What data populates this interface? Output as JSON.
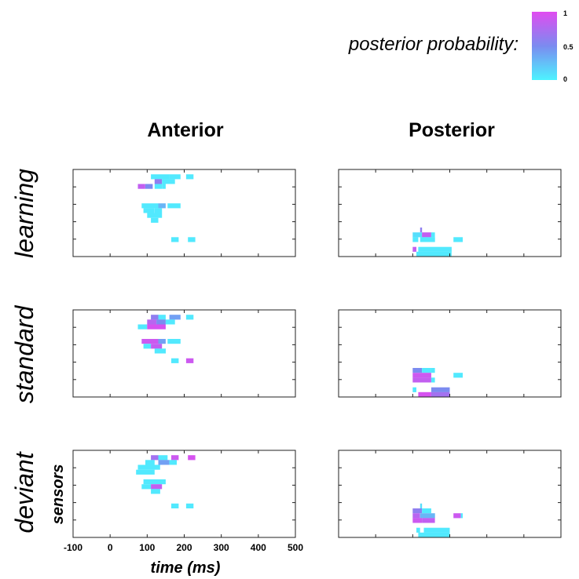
{
  "chart_data": {
    "type": "heatmap",
    "colorbar": {
      "label": "posterior probability:",
      "ticks": [
        "1",
        "0.5",
        "0"
      ],
      "range": [
        0,
        1
      ],
      "colors": {
        "low": "#4df3ff",
        "mid": "#7b8bf0",
        "high": "#e04cf0"
      }
    },
    "columns": [
      "Anterior",
      "Posterior"
    ],
    "rows": [
      "learning",
      "standard",
      "deviant"
    ],
    "xlabel": "time (ms)",
    "ylabel": "sensors",
    "xticks": [
      "-100",
      "0",
      "100",
      "200",
      "300",
      "400",
      "500"
    ],
    "xlim": [
      -100,
      500
    ],
    "panels": [
      {
        "row": "learning",
        "col": "Anterior",
        "cells": [
          [
            110,
            160,
            1,
            0.05
          ],
          [
            120,
            140,
            2,
            0.6
          ],
          [
            160,
            190,
            1,
            0.05
          ],
          [
            205,
            225,
            1,
            0.05
          ],
          [
            120,
            140,
            3,
            0.05
          ],
          [
            140,
            175,
            2,
            0.05
          ],
          [
            75,
            95,
            3,
            0.85
          ],
          [
            95,
            115,
            3,
            0.5
          ],
          [
            140,
            150,
            3,
            0.05
          ],
          [
            85,
            130,
            7,
            0.05
          ],
          [
            130,
            150,
            7,
            0.3
          ],
          [
            155,
            190,
            7,
            0.05
          ],
          [
            90,
            120,
            8,
            0.05
          ],
          [
            120,
            140,
            8,
            0.05
          ],
          [
            100,
            140,
            9,
            0.05
          ],
          [
            110,
            130,
            10,
            0.05
          ],
          [
            165,
            185,
            14,
            0.05
          ],
          [
            210,
            230,
            14,
            0.05
          ]
        ]
      },
      {
        "row": "learning",
        "col": "Posterior",
        "cells": [
          [
            120,
            125,
            12,
            0.6
          ],
          [
            100,
            125,
            13,
            0.1
          ],
          [
            125,
            150,
            13,
            0.85
          ],
          [
            150,
            160,
            13,
            0.05
          ],
          [
            100,
            115,
            14,
            0.05
          ],
          [
            120,
            160,
            14,
            0.05
          ],
          [
            210,
            235,
            14,
            0.05
          ],
          [
            100,
            110,
            16,
            0.85
          ],
          [
            115,
            205,
            16,
            0.05
          ],
          [
            110,
            205,
            17,
            0.05
          ]
        ]
      },
      {
        "row": "standard",
        "col": "Anterior",
        "cells": [
          [
            110,
            130,
            1,
            0.6
          ],
          [
            130,
            150,
            1,
            0.05
          ],
          [
            160,
            190,
            1,
            0.4
          ],
          [
            205,
            225,
            1,
            0.05
          ],
          [
            100,
            125,
            2,
            0.8
          ],
          [
            125,
            150,
            2,
            0.5
          ],
          [
            150,
            175,
            2,
            0.05
          ],
          [
            75,
            100,
            3,
            0.05
          ],
          [
            100,
            150,
            3,
            0.95
          ],
          [
            85,
            130,
            6,
            0.9
          ],
          [
            130,
            150,
            6,
            0.4
          ],
          [
            155,
            190,
            6,
            0.05
          ],
          [
            90,
            110,
            7,
            0.05
          ],
          [
            110,
            140,
            7,
            0.85
          ],
          [
            120,
            150,
            8,
            0.05
          ],
          [
            165,
            185,
            10,
            0.05
          ],
          [
            205,
            225,
            10,
            0.9
          ]
        ]
      },
      {
        "row": "standard",
        "col": "Posterior",
        "cells": [
          [
            100,
            125,
            12,
            0.5
          ],
          [
            125,
            150,
            12,
            0.05
          ],
          [
            150,
            160,
            12,
            0.05
          ],
          [
            100,
            150,
            13,
            0.9
          ],
          [
            210,
            235,
            13,
            0.05
          ],
          [
            100,
            150,
            14,
            0.85
          ],
          [
            150,
            160,
            14,
            0.05
          ],
          [
            100,
            110,
            16,
            0.05
          ],
          [
            150,
            200,
            16,
            0.5
          ],
          [
            115,
            150,
            17,
            0.95
          ],
          [
            150,
            200,
            17,
            0.7
          ]
        ]
      },
      {
        "row": "deviant",
        "col": "Anterior",
        "cells": [
          [
            110,
            130,
            1,
            0.7
          ],
          [
            130,
            155,
            1,
            0.05
          ],
          [
            165,
            185,
            1,
            0.9
          ],
          [
            210,
            230,
            1,
            0.95
          ],
          [
            95,
            120,
            2,
            0.05
          ],
          [
            130,
            160,
            2,
            0.4
          ],
          [
            160,
            180,
            2,
            0.05
          ],
          [
            75,
            135,
            3,
            0.05
          ],
          [
            70,
            120,
            4,
            0.05
          ],
          [
            90,
            150,
            6,
            0.05
          ],
          [
            85,
            110,
            7,
            0.05
          ],
          [
            110,
            140,
            7,
            0.85
          ],
          [
            110,
            135,
            8,
            0.05
          ],
          [
            165,
            185,
            11,
            0.05
          ],
          [
            205,
            225,
            11,
            0.05
          ]
        ]
      },
      {
        "row": "deviant",
        "col": "Posterior",
        "cells": [
          [
            120,
            125,
            11,
            0.1
          ],
          [
            100,
            125,
            12,
            0.6
          ],
          [
            125,
            150,
            12,
            0.05
          ],
          [
            100,
            120,
            13,
            0.8
          ],
          [
            120,
            160,
            13,
            0.3
          ],
          [
            210,
            230,
            13,
            0.9
          ],
          [
            230,
            235,
            13,
            0.05
          ],
          [
            100,
            125,
            14,
            0.9
          ],
          [
            125,
            160,
            14,
            0.85
          ],
          [
            110,
            120,
            16,
            0.05
          ],
          [
            130,
            200,
            16,
            0.05
          ],
          [
            115,
            200,
            17,
            0.05
          ]
        ]
      }
    ]
  }
}
